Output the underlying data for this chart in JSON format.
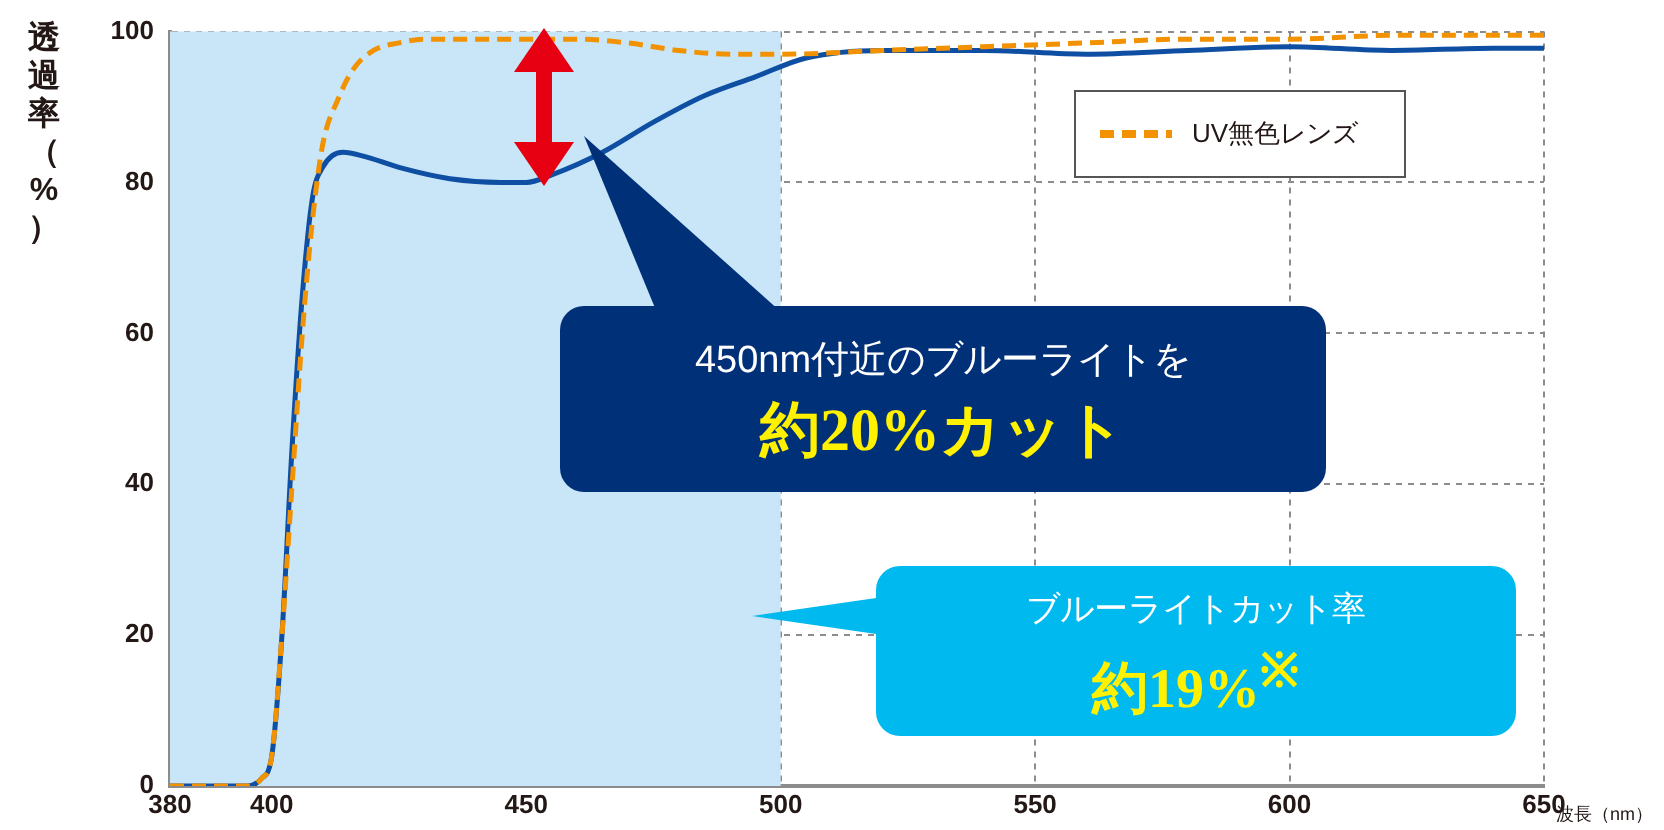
{
  "chart_data": {
    "type": "line",
    "xlabel": "波長（nm）",
    "ylabel": "透過率（%）",
    "xlim": [
      380,
      650
    ],
    "xticks": [
      380,
      400,
      450,
      500,
      550,
      600,
      650
    ],
    "ylim": [
      0,
      100
    ],
    "yticks": [
      0,
      20,
      40,
      60,
      80,
      100
    ],
    "grid": true,
    "legend": "top right",
    "marker": "none",
    "line_style": "solid",
    "bands": [
      {
        "axis": "x",
        "from": 380,
        "to": 500,
        "color": "#c8e6f8"
      }
    ],
    "annotations": [
      "450nm付近のブルーライトを",
      "約20%カット",
      "ブルーライトカット率",
      "約19%$^{※}$"
    ],
    "series": [
      {
        "name": "UV無色レンズ",
        "color": "#f39200",
        "line_style": "dashed",
        "x": [
          380,
          395,
          398,
          400,
          402,
          404,
          406,
          408,
          410,
          413,
          416,
          420,
          425,
          430,
          440,
          460,
          470,
          480,
          490,
          500,
          520,
          540,
          560,
          580,
          600,
          620,
          640,
          650
        ],
        "values": [
          0,
          0,
          1,
          4,
          20,
          40,
          60,
          75,
          85,
          91,
          95,
          97.5,
          98.5,
          99,
          99,
          99,
          98.5,
          97.5,
          97,
          97,
          97.5,
          98,
          98.5,
          99,
          99,
          99.5,
          99.5,
          99.5
        ]
      },
      {
        "color": "#0e4ea3",
        "x": [
          380,
          395,
          398,
          400,
          402,
          404,
          406,
          408,
          410,
          414,
          418,
          425,
          435,
          445,
          450,
          455,
          465,
          475,
          485,
          495,
          505,
          520,
          540,
          560,
          580,
          600,
          620,
          640,
          650
        ],
        "values": [
          0,
          0,
          1,
          4,
          20,
          45,
          65,
          78,
          82,
          84,
          83.5,
          82,
          80.5,
          80,
          80,
          81,
          84,
          88,
          91.5,
          94,
          96.5,
          97.5,
          97.5,
          97,
          97.5,
          98,
          97.5,
          97.8,
          97.8
        ]
      }
    ]
  }
}
